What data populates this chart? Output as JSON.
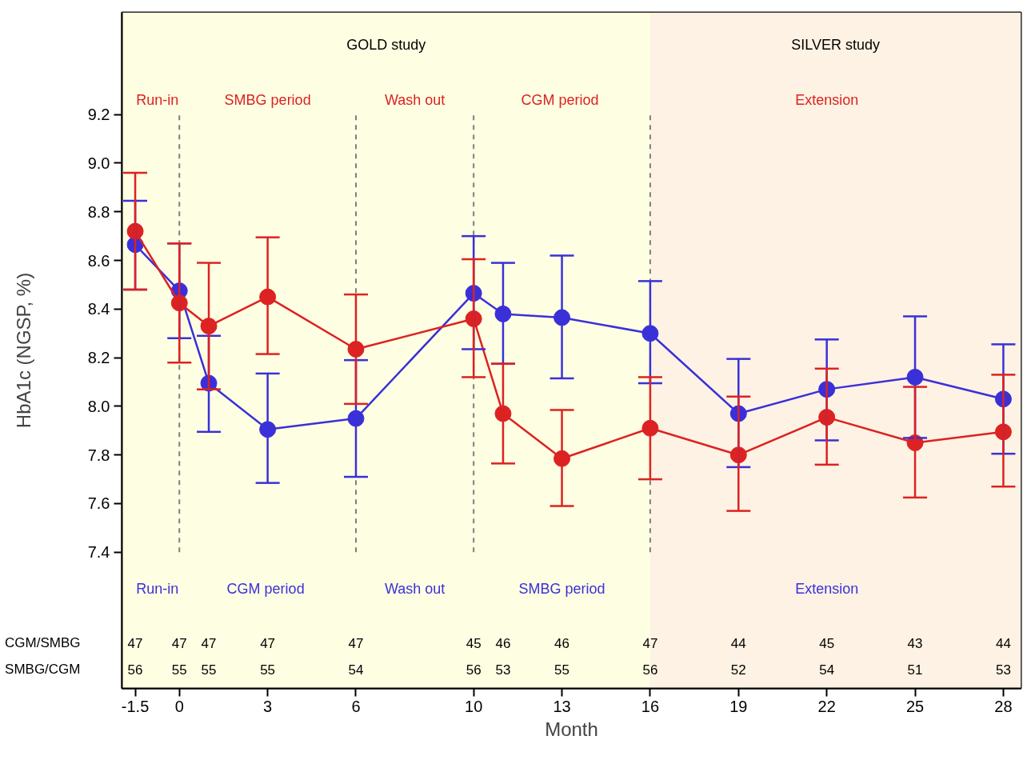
{
  "chart_data": {
    "type": "line",
    "xlabel": "Month",
    "ylabel": "HbA1c (NGSP, %)",
    "x": [
      -1.5,
      0,
      1,
      3,
      6,
      10,
      11,
      13,
      16,
      19,
      22,
      25,
      28
    ],
    "xlim": [
      -1.95,
      28.6
    ],
    "ylim": [
      6.84,
      9.62
    ],
    "xticks": [
      -1.5,
      0,
      3,
      6,
      10,
      13,
      16,
      19,
      22,
      25,
      28
    ],
    "yticks": [
      {
        "value": 7.4,
        "label": "7.4"
      },
      {
        "value": 7.6,
        "label": "7.6"
      },
      {
        "value": 7.8,
        "label": "7.8"
      },
      {
        "value": 8.0,
        "label": "8.0"
      },
      {
        "value": 8.2,
        "label": "8.2"
      },
      {
        "value": 8.4,
        "label": "8.4"
      },
      {
        "value": 8.6,
        "label": "8.6"
      },
      {
        "value": 8.8,
        "label": "8.8"
      },
      {
        "value": 9.0,
        "label": "9.0"
      },
      {
        "value": 9.2,
        "label": "9.2"
      }
    ],
    "marker": "circle",
    "grid": false,
    "series": [
      {
        "color": "#3a30d8",
        "values": [
          8.665,
          8.475,
          8.095,
          7.905,
          7.95,
          8.465,
          8.38,
          8.365,
          8.3,
          7.97,
          8.07,
          8.12,
          8.03
        ],
        "errors": [
          [
            8.48,
            8.845
          ],
          [
            8.28,
            8.67
          ],
          [
            7.895,
            8.29
          ],
          [
            7.685,
            8.135
          ],
          [
            7.71,
            8.19
          ],
          [
            8.235,
            8.7
          ],
          [
            8.175,
            8.59
          ],
          [
            8.115,
            8.62
          ],
          [
            8.095,
            8.515
          ],
          [
            7.75,
            8.195
          ],
          [
            7.86,
            8.275
          ],
          [
            7.87,
            8.37
          ],
          [
            7.805,
            8.255
          ]
        ]
      },
      {
        "color": "#dc2222",
        "values": [
          8.72,
          8.425,
          8.33,
          8.45,
          8.235,
          8.36,
          7.97,
          7.785,
          7.91,
          7.8,
          7.955,
          7.85,
          7.895
        ],
        "errors": [
          [
            8.48,
            8.96
          ],
          [
            8.18,
            8.67
          ],
          [
            8.07,
            8.59
          ],
          [
            8.215,
            8.695
          ],
          [
            8.01,
            8.46
          ],
          [
            8.12,
            8.605
          ],
          [
            7.765,
            8.175
          ],
          [
            7.59,
            7.985
          ],
          [
            7.7,
            8.12
          ],
          [
            7.57,
            8.04
          ],
          [
            7.76,
            8.155
          ],
          [
            7.625,
            8.08
          ],
          [
            7.67,
            8.13
          ]
        ]
      }
    ],
    "ref_lines": [
      {
        "axis": "x",
        "value": 0,
        "color": "#7f7f7f",
        "line_style": "dashed"
      },
      {
        "axis": "x",
        "value": 6,
        "color": "#7f7f7f",
        "line_style": "dashed"
      },
      {
        "axis": "x",
        "value": 10,
        "color": "#7f7f7f",
        "line_style": "dashed"
      },
      {
        "axis": "x",
        "value": 16,
        "color": "#7f7f7f",
        "line_style": "dashed"
      }
    ],
    "bands": [
      {
        "axis": "x",
        "from": -1.95,
        "to": 16,
        "label": "GOLD study",
        "color": "#fefee2"
      },
      {
        "axis": "x",
        "from": 16,
        "to": 28.6,
        "label": "SILVER study",
        "color": "#fdf2e3"
      }
    ],
    "annotations": [
      "Run-in",
      "SMBG period",
      "Wash out",
      "CGM  period",
      "Extension",
      "Run-in",
      "CGM  period",
      "Wash out",
      "SMBG period",
      "Extension",
      "CGM/SMBG",
      "SMBG/CGM",
      "47",
      "47",
      "47",
      "47",
      "47",
      "45",
      "46",
      "46",
      "47",
      "44",
      "45",
      "43",
      "44",
      "56",
      "55",
      "55",
      "55",
      "54",
      "56",
      "53",
      "55",
      "56",
      "52",
      "54",
      "51",
      "53"
    ]
  }
}
